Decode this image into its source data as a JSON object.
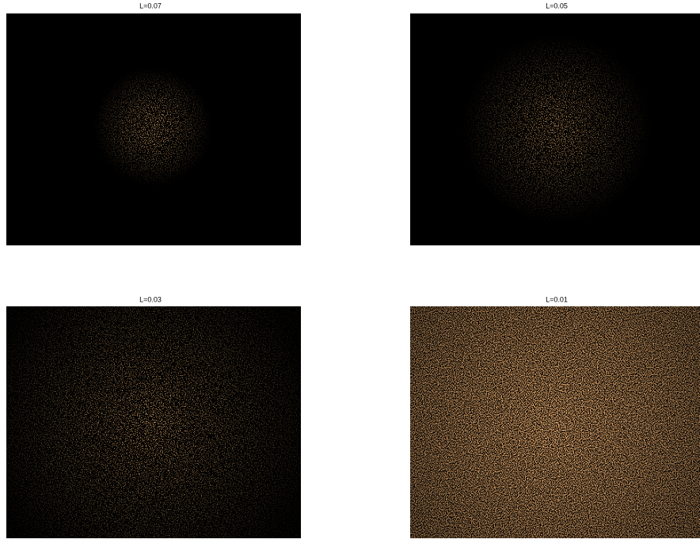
{
  "panels": [
    {
      "title": "L=0.07"
    },
    {
      "title": "L=0.05"
    },
    {
      "title": "L=0.03"
    },
    {
      "title": "L=0.01"
    }
  ]
}
